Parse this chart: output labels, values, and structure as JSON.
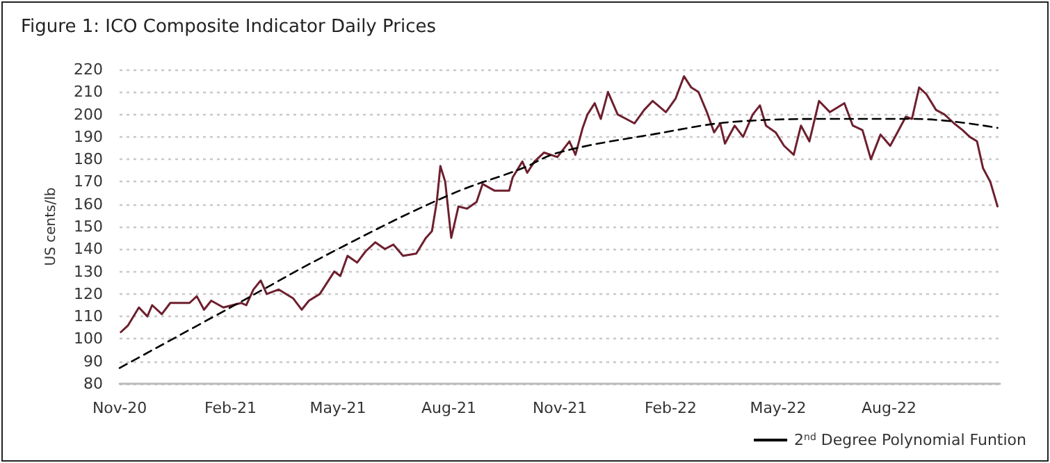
{
  "chart_data": {
    "type": "line",
    "title": "Figure 1: ICO Composite Indicator Daily Prices",
    "ylabel": "US cents/lb",
    "xlim": [
      "2020-11-01",
      "2022-11-01"
    ],
    "xticks": [
      {
        "value": "2020-11-01",
        "label": "Nov-20"
      },
      {
        "value": "2021-02-01",
        "label": "Feb-21"
      },
      {
        "value": "2021-05-01",
        "label": "May-21"
      },
      {
        "value": "2021-08-01",
        "label": "Aug-21"
      },
      {
        "value": "2021-11-01",
        "label": "Nov-21"
      },
      {
        "value": "2022-02-01",
        "label": "Feb-22"
      },
      {
        "value": "2022-05-01",
        "label": "May-22"
      },
      {
        "value": "2022-08-01",
        "label": "Aug-22"
      }
    ],
    "ylim": [
      80,
      220
    ],
    "yticks": [
      80,
      90,
      100,
      110,
      120,
      130,
      140,
      150,
      160,
      170,
      180,
      190,
      200,
      210,
      220
    ],
    "grid": "y",
    "legend": "bottom right",
    "marker": "none",
    "series": [
      {
        "color": "#6e1f2e",
        "line_style": "solid",
        "x": [
          "2020-11-02",
          "2020-11-08",
          "2020-11-17",
          "2020-11-24",
          "2020-11-28",
          "2020-12-06",
          "2020-12-13",
          "2020-12-29",
          "2021-01-04",
          "2021-01-10",
          "2021-01-16",
          "2021-01-26",
          "2021-02-10",
          "2021-02-14",
          "2021-02-20",
          "2021-02-26",
          "2021-03-03",
          "2021-03-13",
          "2021-03-25",
          "2021-04-01",
          "2021-04-07",
          "2021-04-16",
          "2021-04-28",
          "2021-05-03",
          "2021-05-09",
          "2021-05-17",
          "2021-05-24",
          "2021-06-01",
          "2021-06-09",
          "2021-06-16",
          "2021-06-24",
          "2021-07-05",
          "2021-07-13",
          "2021-07-18",
          "2021-07-22",
          "2021-07-25",
          "2021-07-29",
          "2021-08-03",
          "2021-08-09",
          "2021-08-16",
          "2021-08-24",
          "2021-08-29",
          "2021-09-08",
          "2021-09-20",
          "2021-09-23",
          "2021-10-01",
          "2021-10-05",
          "2021-10-11",
          "2021-10-19",
          "2021-10-30",
          "2021-11-09",
          "2021-11-14",
          "2021-11-20",
          "2021-11-24",
          "2021-11-30",
          "2021-12-05",
          "2021-12-11",
          "2021-12-19",
          "2021-12-26",
          "2022-01-02",
          "2022-01-10",
          "2022-01-17",
          "2022-01-28",
          "2022-02-05",
          "2022-02-12",
          "2022-02-18",
          "2022-02-24",
          "2022-03-03",
          "2022-03-09",
          "2022-03-14",
          "2022-03-18",
          "2022-03-26",
          "2022-04-02",
          "2022-04-10",
          "2022-04-16",
          "2022-04-21",
          "2022-04-29",
          "2022-05-06",
          "2022-05-14",
          "2022-05-20",
          "2022-05-27",
          "2022-06-04",
          "2022-06-13",
          "2022-06-25",
          "2022-07-02",
          "2022-07-10",
          "2022-07-17",
          "2022-07-25",
          "2022-08-02",
          "2022-08-09",
          "2022-08-15",
          "2022-08-20",
          "2022-08-26",
          "2022-09-01",
          "2022-09-09",
          "2022-09-16",
          "2022-09-24",
          "2022-10-01",
          "2022-10-07",
          "2022-10-13",
          "2022-10-18",
          "2022-10-24",
          "2022-10-30"
        ],
        "values": [
          103,
          106,
          114,
          110,
          115,
          111,
          116,
          116,
          119,
          113,
          117,
          114,
          116,
          115,
          122,
          126,
          120,
          122,
          118,
          113,
          117,
          120,
          130,
          128,
          137,
          134,
          139,
          143,
          140,
          142,
          137,
          138,
          145,
          148,
          161,
          177,
          170,
          145,
          159,
          158,
          161,
          169,
          166,
          166,
          172,
          179,
          174,
          179,
          183,
          181,
          188,
          182,
          194,
          200,
          205,
          198,
          210,
          200,
          198,
          196,
          202,
          206,
          201,
          207,
          217,
          212,
          210,
          201,
          192,
          196,
          187,
          195,
          190,
          200,
          204,
          195,
          192,
          186,
          182,
          195,
          188,
          206,
          201,
          205,
          195,
          193,
          180,
          191,
          186,
          193,
          199,
          198,
          212,
          209,
          202,
          200,
          196,
          193,
          190,
          188,
          176,
          170,
          159
        ]
      },
      {
        "name": "2$^{nd}$ Degree Polynomial Funtion",
        "color": "#000000",
        "line_style": "dashed",
        "x": [
          "2020-11-01",
          "2021-02-01",
          "2021-05-01",
          "2021-08-01",
          "2021-10-01",
          "2021-10-31",
          "2022-01-16",
          "2022-04-02",
          "2022-06-18",
          "2022-08-22",
          "2022-10-30"
        ],
        "values": [
          87,
          114,
          140,
          164,
          176,
          183,
          191,
          197,
          198,
          198,
          194
        ]
      }
    ]
  }
}
